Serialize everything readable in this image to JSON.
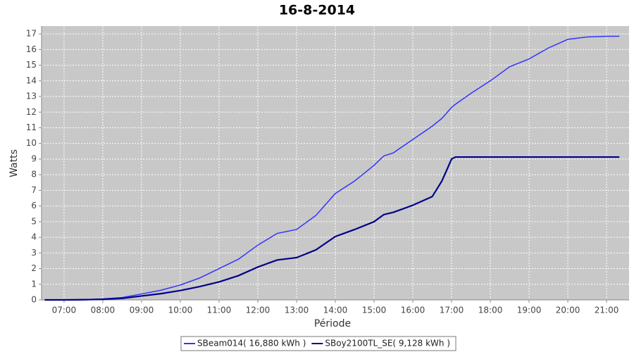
{
  "chart_data": {
    "type": "line",
    "title": "16-8-2014",
    "x_label": "Période",
    "y_label": "Watts",
    "x": [
      6.5,
      7,
      7.5,
      8,
      8.5,
      9,
      9.5,
      10,
      10.5,
      11,
      11.5,
      12,
      12.5,
      13,
      13.5,
      14,
      14.5,
      15,
      15.25,
      15.5,
      16,
      16.5,
      16.75,
      17,
      17.1,
      17.5,
      18,
      18.5,
      19,
      19.5,
      20,
      20.5,
      21,
      21.33
    ],
    "series": [
      {
        "name": "SBeam014( 16,880 kWh )",
        "color": "#3333ff",
        "values": [
          0,
          0,
          0.02,
          0.06,
          0.15,
          0.38,
          0.62,
          0.95,
          1.4,
          2.0,
          2.6,
          3.5,
          4.25,
          4.5,
          5.4,
          6.8,
          7.6,
          8.6,
          9.2,
          9.4,
          10.25,
          11.1,
          11.6,
          12.3,
          12.5,
          13.2,
          14.0,
          14.9,
          15.4,
          16.1,
          16.65,
          16.8,
          16.85,
          16.85
        ]
      },
      {
        "name": "SBoy2100TL_SE( 9,128 kWh )",
        "color": "#00008b",
        "values": [
          0,
          0,
          0.01,
          0.04,
          0.1,
          0.25,
          0.4,
          0.6,
          0.85,
          1.15,
          1.55,
          2.1,
          2.55,
          2.7,
          3.2,
          4.05,
          4.5,
          5.0,
          5.45,
          5.6,
          6.05,
          6.6,
          7.6,
          9.0,
          9.13,
          9.13,
          9.13,
          9.13,
          9.13,
          9.13,
          9.13,
          9.13,
          9.13,
          9.13
        ]
      }
    ],
    "xlim": [
      6.42,
      21.58
    ],
    "xticks": [
      {
        "value": 7,
        "label": "07:00"
      },
      {
        "value": 8,
        "label": "08:00"
      },
      {
        "value": 9,
        "label": "09:00"
      },
      {
        "value": 10,
        "label": "10:00"
      },
      {
        "value": 11,
        "label": "11:00"
      },
      {
        "value": 12,
        "label": "12:00"
      },
      {
        "value": 13,
        "label": "13:00"
      },
      {
        "value": 14,
        "label": "14:00"
      },
      {
        "value": 15,
        "label": "15:00"
      },
      {
        "value": 16,
        "label": "16:00"
      },
      {
        "value": 17,
        "label": "17:00"
      },
      {
        "value": 18,
        "label": "18:00"
      },
      {
        "value": 19,
        "label": "19:00"
      },
      {
        "value": 20,
        "label": "20:00"
      },
      {
        "value": 21,
        "label": "21:00"
      }
    ],
    "ylim": [
      0,
      17.5
    ],
    "yticks": [
      0,
      1,
      2,
      3,
      4,
      5,
      6,
      7,
      8,
      9,
      10,
      11,
      12,
      13,
      14,
      15,
      16,
      17
    ],
    "grid": true,
    "legend": "bottom"
  }
}
